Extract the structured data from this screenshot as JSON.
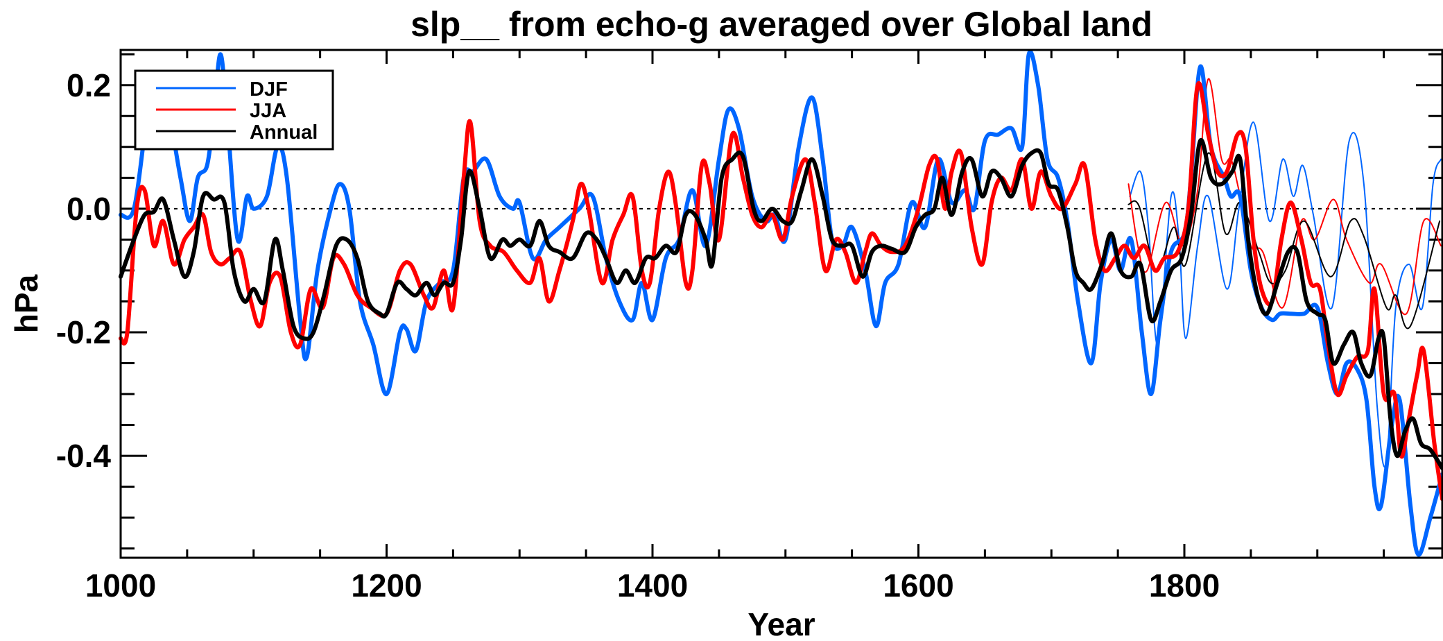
{
  "chart_data": {
    "type": "line",
    "title": "slp__ from echo-g averaged over Global land",
    "xlabel": "Year",
    "ylabel": "hPa",
    "xlim": [
      1000,
      1994
    ],
    "ylim": [
      -0.565,
      0.257
    ],
    "xticks": [
      1000,
      1200,
      1400,
      1600,
      1800
    ],
    "xtick_labels": [
      "1000",
      "1200",
      "1400",
      "1600",
      "1800"
    ],
    "yticks": [
      0.2,
      0.0,
      -0.2,
      -0.4
    ],
    "ytick_labels": [
      "0.2",
      "0.0",
      "-0.2",
      "-0.4"
    ],
    "reference_line": {
      "y": 0.0,
      "style": "dotted"
    },
    "legend": {
      "placement": "top-left",
      "entries": [
        "DJF",
        "JJA",
        "Annual"
      ]
    },
    "colors": {
      "DJF": "#0066ff",
      "JJA": "#ff0000",
      "Annual": "#000000"
    },
    "series": [
      {
        "name": "DJF",
        "style": "thick",
        "color": "#0066ff",
        "x": [
          1000,
          1010,
          1020,
          1027,
          1035,
          1045,
          1052,
          1058,
          1065,
          1070,
          1075,
          1080,
          1088,
          1095,
          1100,
          1110,
          1118,
          1125,
          1135,
          1140,
          1148,
          1158,
          1165,
          1172,
          1180,
          1190,
          1200,
          1210,
          1215,
          1222,
          1230,
          1240,
          1250,
          1258,
          1265,
          1275,
          1285,
          1295,
          1300,
          1310,
          1320,
          1330,
          1345,
          1355,
          1365,
          1375,
          1385,
          1392,
          1400,
          1410,
          1420,
          1430,
          1440,
          1450,
          1457,
          1465,
          1475,
          1485,
          1492,
          1500,
          1510,
          1520,
          1528,
          1535,
          1543,
          1550,
          1560,
          1568,
          1575,
          1585,
          1595,
          1605,
          1615,
          1625,
          1635,
          1642,
          1650,
          1660,
          1670,
          1678,
          1683,
          1690,
          1697,
          1705,
          1712,
          1720,
          1730,
          1737,
          1745,
          1752,
          1760,
          1768,
          1775,
          1782,
          1790,
          1800,
          1805,
          1812,
          1820,
          1830,
          1835,
          1842,
          1850,
          1858,
          1866,
          1872,
          1880,
          1890,
          1900,
          1908,
          1915,
          1922,
          1930,
          1937,
          1943,
          1948,
          1956,
          1962,
          1970,
          1976,
          1985,
          1994
        ],
        "y": [
          -0.01,
          0.0,
          0.15,
          0.2,
          0.17,
          0.05,
          -0.02,
          0.05,
          0.07,
          0.15,
          0.25,
          0.15,
          -0.05,
          0.02,
          0.0,
          0.02,
          0.1,
          0.05,
          -0.18,
          -0.24,
          -0.1,
          0.0,
          0.04,
          0.0,
          -0.15,
          -0.22,
          -0.3,
          -0.2,
          -0.195,
          -0.23,
          -0.15,
          -0.12,
          -0.1,
          0.05,
          0.06,
          0.08,
          0.02,
          0.0,
          0.01,
          -0.08,
          -0.05,
          -0.03,
          0.0,
          0.02,
          -0.08,
          -0.15,
          -0.18,
          -0.12,
          -0.18,
          -0.08,
          -0.05,
          0.03,
          -0.06,
          0.08,
          0.16,
          0.13,
          0.02,
          -0.02,
          -0.01,
          -0.05,
          0.1,
          0.18,
          0.08,
          -0.05,
          -0.06,
          -0.03,
          -0.1,
          -0.19,
          -0.12,
          -0.09,
          0.01,
          -0.03,
          0.08,
          0.01,
          0.03,
          0.0,
          0.11,
          0.12,
          0.13,
          0.1,
          0.25,
          0.2,
          0.08,
          0.05,
          -0.02,
          -0.15,
          -0.25,
          -0.12,
          -0.05,
          -0.1,
          -0.05,
          -0.2,
          -0.3,
          -0.18,
          -0.07,
          -0.04,
          0.05,
          0.23,
          0.1,
          0.05,
          0.02,
          0.02,
          -0.1,
          -0.16,
          -0.18,
          -0.17,
          -0.17,
          -0.17,
          -0.16,
          -0.25,
          -0.3,
          -0.25,
          -0.26,
          -0.31,
          -0.45,
          -0.48,
          -0.35,
          -0.31,
          -0.48,
          -0.56,
          -0.5,
          -0.43
        ]
      },
      {
        "name": "JJA",
        "style": "thick",
        "color": "#ff0000",
        "x": [
          1000,
          1005,
          1012,
          1018,
          1025,
          1032,
          1040,
          1048,
          1055,
          1062,
          1068,
          1075,
          1082,
          1090,
          1098,
          1105,
          1112,
          1120,
          1128,
          1135,
          1143,
          1152,
          1160,
          1168,
          1178,
          1188,
          1200,
          1210,
          1218,
          1228,
          1235,
          1243,
          1250,
          1258,
          1263,
          1270,
          1278,
          1288,
          1298,
          1308,
          1315,
          1322,
          1330,
          1340,
          1346,
          1352,
          1362,
          1370,
          1378,
          1385,
          1392,
          1398,
          1405,
          1412,
          1418,
          1425,
          1430,
          1437,
          1443,
          1450,
          1460,
          1468,
          1475,
          1482,
          1490,
          1498,
          1505,
          1515,
          1522,
          1530,
          1538,
          1545,
          1553,
          1560,
          1565,
          1572,
          1580,
          1590,
          1600,
          1608,
          1614,
          1620,
          1625,
          1632,
          1640,
          1648,
          1655,
          1662,
          1670,
          1678,
          1685,
          1692,
          1700,
          1708,
          1718,
          1725,
          1733,
          1740,
          1748,
          1755,
          1762,
          1770,
          1778,
          1785,
          1795,
          1803,
          1810,
          1818,
          1825,
          1832,
          1840,
          1846,
          1852,
          1858,
          1866,
          1873,
          1880,
          1888,
          1895,
          1902,
          1908,
          1915,
          1922,
          1930,
          1938,
          1943,
          1950,
          1958,
          1963,
          1968,
          1975,
          1980,
          1988,
          1994
        ],
        "y": [
          -0.21,
          -0.2,
          0.0,
          0.03,
          -0.06,
          -0.02,
          -0.09,
          -0.05,
          -0.03,
          -0.01,
          -0.07,
          -0.09,
          -0.08,
          -0.07,
          -0.15,
          -0.19,
          -0.12,
          -0.11,
          -0.2,
          -0.22,
          -0.13,
          -0.16,
          -0.08,
          -0.09,
          -0.14,
          -0.16,
          -0.17,
          -0.1,
          -0.09,
          -0.14,
          -0.16,
          -0.1,
          -0.16,
          0.05,
          0.14,
          -0.02,
          -0.06,
          -0.07,
          -0.1,
          -0.12,
          -0.08,
          -0.15,
          -0.1,
          -0.02,
          0.04,
          0.0,
          -0.12,
          -0.05,
          -0.01,
          0.02,
          -0.1,
          -0.12,
          0.0,
          0.06,
          0.0,
          -0.12,
          -0.1,
          0.07,
          0.04,
          -0.05,
          0.12,
          0.05,
          -0.01,
          -0.03,
          -0.01,
          -0.05,
          0.02,
          0.08,
          0.01,
          -0.1,
          -0.05,
          -0.07,
          -0.12,
          -0.07,
          -0.04,
          -0.06,
          -0.07,
          -0.06,
          0.0,
          0.07,
          0.08,
          0.0,
          0.06,
          0.09,
          -0.03,
          -0.09,
          0.01,
          0.05,
          0.03,
          0.08,
          0.0,
          0.06,
          0.02,
          0.0,
          0.04,
          0.07,
          -0.05,
          -0.1,
          -0.08,
          -0.06,
          -0.08,
          -0.06,
          -0.1,
          -0.08,
          -0.07,
          0.0,
          0.2,
          0.12,
          0.06,
          0.06,
          0.12,
          0.1,
          -0.05,
          -0.13,
          -0.15,
          -0.05,
          0.01,
          -0.05,
          -0.12,
          -0.13,
          -0.22,
          -0.3,
          -0.27,
          -0.24,
          -0.23,
          -0.13,
          -0.3,
          -0.3,
          -0.4,
          -0.35,
          -0.27,
          -0.23,
          -0.38,
          -0.47
        ]
      },
      {
        "name": "Annual",
        "style": "thick",
        "color": "#000000",
        "x": [
          1000,
          1010,
          1018,
          1025,
          1032,
          1040,
          1048,
          1055,
          1062,
          1070,
          1078,
          1085,
          1093,
          1100,
          1108,
          1116,
          1122,
          1130,
          1138,
          1145,
          1153,
          1162,
          1170,
          1178,
          1186,
          1195,
          1200,
          1208,
          1215,
          1222,
          1230,
          1236,
          1243,
          1250,
          1256,
          1262,
          1270,
          1278,
          1287,
          1293,
          1300,
          1308,
          1315,
          1322,
          1330,
          1340,
          1350,
          1358,
          1365,
          1373,
          1380,
          1387,
          1395,
          1402,
          1410,
          1418,
          1425,
          1432,
          1440,
          1445,
          1452,
          1460,
          1468,
          1476,
          1482,
          1490,
          1498,
          1505,
          1512,
          1520,
          1528,
          1535,
          1543,
          1550,
          1558,
          1565,
          1572,
          1580,
          1590,
          1598,
          1605,
          1612,
          1618,
          1625,
          1633,
          1640,
          1648,
          1655,
          1662,
          1670,
          1678,
          1685,
          1692,
          1698,
          1705,
          1712,
          1718,
          1724,
          1730,
          1738,
          1745,
          1752,
          1760,
          1767,
          1775,
          1782,
          1790,
          1798,
          1805,
          1812,
          1820,
          1828,
          1836,
          1842,
          1848,
          1855,
          1862,
          1870,
          1878,
          1885,
          1892,
          1900,
          1906,
          1912,
          1920,
          1927,
          1933,
          1940,
          1946,
          1950,
          1955,
          1960,
          1966,
          1972,
          1978,
          1985,
          1994
        ],
        "y": [
          -0.11,
          -0.05,
          -0.01,
          -0.005,
          0.015,
          -0.05,
          -0.11,
          -0.07,
          0.02,
          0.015,
          0.01,
          -0.1,
          -0.15,
          -0.13,
          -0.15,
          -0.05,
          -0.1,
          -0.19,
          -0.21,
          -0.2,
          -0.14,
          -0.06,
          -0.05,
          -0.08,
          -0.15,
          -0.17,
          -0.17,
          -0.12,
          -0.13,
          -0.14,
          -0.12,
          -0.14,
          -0.12,
          -0.12,
          -0.05,
          0.06,
          0.0,
          -0.08,
          -0.05,
          -0.06,
          -0.05,
          -0.06,
          -0.02,
          -0.06,
          -0.07,
          -0.08,
          -0.04,
          -0.05,
          -0.08,
          -0.12,
          -0.1,
          -0.12,
          -0.08,
          -0.08,
          -0.06,
          -0.07,
          -0.01,
          -0.01,
          -0.05,
          -0.09,
          0.05,
          0.08,
          0.085,
          0.0,
          -0.02,
          0.0,
          -0.02,
          -0.02,
          0.03,
          0.08,
          0.02,
          -0.05,
          -0.06,
          -0.06,
          -0.11,
          -0.07,
          -0.06,
          -0.065,
          -0.07,
          -0.03,
          -0.01,
          0.0,
          0.05,
          -0.01,
          0.06,
          0.08,
          0.02,
          0.06,
          0.05,
          0.02,
          0.07,
          0.09,
          0.09,
          0.04,
          0.03,
          -0.03,
          -0.1,
          -0.12,
          -0.13,
          -0.09,
          -0.04,
          -0.1,
          -0.11,
          -0.09,
          -0.18,
          -0.15,
          -0.1,
          -0.08,
          -0.01,
          0.11,
          0.05,
          0.04,
          0.06,
          0.08,
          -0.05,
          -0.14,
          -0.17,
          -0.12,
          -0.07,
          -0.07,
          -0.15,
          -0.17,
          -0.18,
          -0.25,
          -0.22,
          -0.2,
          -0.25,
          -0.27,
          -0.21,
          -0.21,
          -0.34,
          -0.4,
          -0.36,
          -0.34,
          -0.38,
          -0.39,
          -0.42
        ]
      },
      {
        "name": "DJF (thin)",
        "style": "thin",
        "color": "#0066ff",
        "x": [
          1759,
          1767,
          1773,
          1780,
          1790,
          1796,
          1801,
          1810,
          1818,
          1832,
          1841,
          1852,
          1864,
          1874,
          1882,
          1889,
          1897,
          1911,
          1924,
          1935,
          1945,
          1952,
          1959,
          1969,
          1979,
          1987,
          1993
        ],
        "y": [
          0.02,
          0.06,
          -0.03,
          -0.22,
          0.02,
          -0.05,
          -0.21,
          -0.06,
          0.02,
          -0.13,
          0.0,
          0.14,
          -0.02,
          0.08,
          0.02,
          0.07,
          -0.01,
          -0.16,
          0.11,
          0.04,
          -0.32,
          -0.41,
          -0.16,
          -0.09,
          -0.16,
          0.04,
          0.08
        ]
      },
      {
        "name": "JJA (thin)",
        "style": "thin",
        "color": "#ff0000",
        "x": [
          1758,
          1765,
          1772,
          1786,
          1799,
          1810,
          1818,
          1828,
          1835,
          1841,
          1850,
          1859,
          1874,
          1888,
          1898,
          1912,
          1922,
          1939,
          1948,
          1967,
          1980,
          1993
        ],
        "y": [
          0.04,
          -0.06,
          -0.1,
          0.01,
          -0.06,
          0.03,
          0.21,
          0.08,
          0.08,
          0.03,
          -0.06,
          -0.07,
          -0.16,
          -0.02,
          -0.05,
          0.015,
          -0.05,
          -0.12,
          -0.09,
          -0.17,
          -0.02,
          -0.06
        ]
      },
      {
        "name": "Annual (thin)",
        "style": "thin",
        "color": "#000000",
        "x": [
          1758,
          1766,
          1779,
          1792,
          1801,
          1818,
          1831,
          1842,
          1856,
          1865,
          1876,
          1890,
          1910,
          1925,
          1935,
          1952,
          1959,
          1970,
          1992
        ],
        "y": [
          0.007,
          0.004,
          -0.1,
          -0.03,
          -0.09,
          0.09,
          -0.04,
          0.01,
          -0.07,
          -0.12,
          -0.1,
          -0.02,
          -0.11,
          -0.02,
          -0.045,
          -0.16,
          -0.14,
          -0.19,
          -0.02
        ]
      }
    ]
  }
}
